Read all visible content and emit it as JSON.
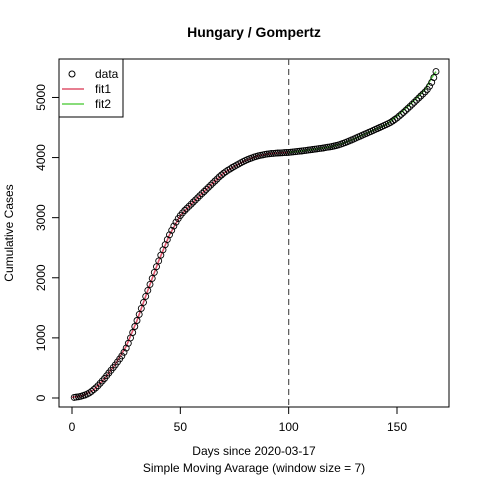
{
  "chart_data": {
    "type": "scatter",
    "title": "Hungary / Gompertz",
    "xlabel": "Days since 2020-03-17",
    "xlabel2": "Simple Moving Avarage (window size = 7)",
    "ylabel": "Cumulative Cases",
    "xlim": [
      -6,
      174
    ],
    "ylim": [
      -150,
      5640
    ],
    "xticks": [
      "0",
      "50",
      "100",
      "150"
    ],
    "xtick_values": [
      0,
      50,
      100,
      150
    ],
    "yticks": [
      "0",
      "1000",
      "2000",
      "3000",
      "4000",
      "5000"
    ],
    "ytick_values": [
      0,
      1000,
      2000,
      3000,
      4000,
      5000
    ],
    "vline_x": 100,
    "legend_position": "top-left",
    "legend": [
      {
        "label": "data",
        "kind": "point",
        "color": "#000000"
      },
      {
        "label": "fit1",
        "kind": "line",
        "color": "#DF536B"
      },
      {
        "label": "fit2",
        "kind": "line",
        "color": "#61D04F"
      }
    ],
    "points": {
      "x": [
        1,
        2,
        3,
        4,
        5,
        6,
        7,
        8,
        9,
        10,
        11,
        12,
        13,
        14,
        15,
        16,
        17,
        18,
        19,
        20,
        21,
        22,
        23,
        24,
        25,
        26,
        27,
        28,
        29,
        30,
        31,
        32,
        33,
        34,
        35,
        36,
        37,
        38,
        39,
        40,
        41,
        42,
        43,
        44,
        45,
        46,
        47,
        48,
        49,
        50,
        51,
        52,
        53,
        54,
        55,
        56,
        57,
        58,
        59,
        60,
        61,
        62,
        63,
        64,
        65,
        66,
        67,
        68,
        69,
        70,
        71,
        72,
        73,
        74,
        75,
        76,
        77,
        78,
        79,
        80,
        81,
        82,
        83,
        84,
        85,
        86,
        87,
        88,
        89,
        90,
        91,
        92,
        93,
        94,
        95,
        96,
        97,
        98,
        99,
        100,
        101,
        102,
        103,
        104,
        105,
        106,
        107,
        108,
        109,
        110,
        111,
        112,
        113,
        114,
        115,
        116,
        117,
        118,
        119,
        120,
        121,
        122,
        123,
        124,
        125,
        126,
        127,
        128,
        129,
        130,
        131,
        132,
        133,
        134,
        135,
        136,
        137,
        138,
        139,
        140,
        141,
        142,
        143,
        144,
        145,
        146,
        147,
        148,
        149,
        150,
        151,
        152,
        153,
        154,
        155,
        156,
        157,
        158,
        159,
        160,
        161,
        162,
        163,
        164,
        165,
        166,
        167,
        168
      ],
      "y": [
        10,
        15,
        20,
        28,
        38,
        50,
        65,
        85,
        110,
        140,
        170,
        205,
        245,
        285,
        325,
        370,
        415,
        460,
        505,
        550,
        600,
        650,
        700,
        760,
        830,
        910,
        1000,
        1090,
        1190,
        1290,
        1390,
        1490,
        1590,
        1690,
        1790,
        1890,
        1990,
        2090,
        2185,
        2280,
        2375,
        2465,
        2550,
        2635,
        2715,
        2790,
        2860,
        2925,
        2985,
        3035,
        3080,
        3120,
        3155,
        3190,
        3225,
        3260,
        3295,
        3330,
        3365,
        3400,
        3435,
        3470,
        3505,
        3540,
        3575,
        3610,
        3645,
        3680,
        3710,
        3740,
        3765,
        3790,
        3812,
        3834,
        3855,
        3875,
        3895,
        3914,
        3933,
        3950,
        3966,
        3981,
        3995,
        4008,
        4020,
        4030,
        4038,
        4045,
        4052,
        4058,
        4063,
        4067,
        4070,
        4073,
        4076,
        4078,
        4080,
        4082,
        4084,
        4086,
        4090,
        4094,
        4098,
        4102,
        4106,
        4110,
        4115,
        4120,
        4125,
        4130,
        4135,
        4140,
        4145,
        4150,
        4155,
        4160,
        4166,
        4172,
        4178,
        4185,
        4192,
        4200,
        4210,
        4222,
        4235,
        4248,
        4262,
        4277,
        4292,
        4308,
        4324,
        4340,
        4356,
        4372,
        4388,
        4404,
        4420,
        4436,
        4452,
        4468,
        4484,
        4500,
        4516,
        4532,
        4548,
        4565,
        4585,
        4608,
        4633,
        4660,
        4690,
        4720,
        4752,
        4785,
        4818,
        4852,
        4886,
        4920,
        4955,
        4990,
        5025,
        5060,
        5095,
        5135,
        5185,
        5250,
        5330,
        5430
      ]
    },
    "series": [
      {
        "name": "fit1",
        "color": "#DF536B",
        "x": [
          0,
          5,
          10,
          15,
          20,
          25,
          30,
          35,
          40,
          45,
          50,
          55,
          60,
          65,
          70,
          75,
          80,
          85,
          90,
          95,
          100
        ],
        "y": [
          12,
          40,
          135,
          320,
          560,
          860,
          1290,
          1790,
          2280,
          2715,
          3035,
          3225,
          3400,
          3575,
          3740,
          3855,
          3950,
          4020,
          4058,
          4076,
          4086
        ]
      },
      {
        "name": "fit2",
        "color": "#61D04F",
        "x": [
          100,
          105,
          110,
          115,
          120,
          125,
          130,
          135,
          140,
          145,
          150,
          155,
          160,
          163,
          166,
          168
        ],
        "y": [
          4086,
          4106,
          4130,
          4155,
          4185,
          4235,
          4308,
          4388,
          4468,
          4548,
          4690,
          4852,
          5025,
          5135,
          5330,
          5430
        ]
      }
    ]
  }
}
